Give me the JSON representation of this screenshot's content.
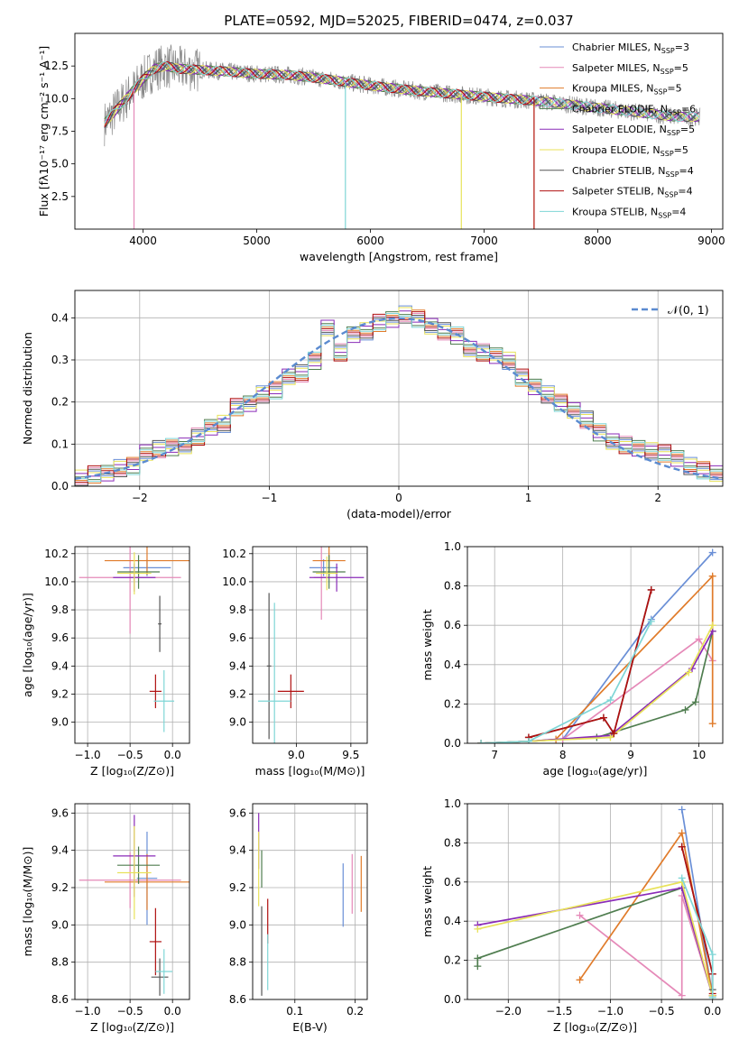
{
  "title": "PLATE=0592, MJD=52025, FIBERID=0474, z=0.037",
  "colors": {
    "Chabrier MILES": "#6a8fd6",
    "Salpeter MILES": "#e589b8",
    "Kroupa MILES": "#e07b2a",
    "Chabrier ELODIE": "#4f7d4f",
    "Salpeter ELODIE": "#8a2bb8",
    "Kroupa ELODIE": "#e8e25a",
    "Chabrier STELIB": "#555555",
    "Salpeter STELIB": "#b01010",
    "Kroupa STELIB": "#7fd6d6",
    "data": "#888888",
    "normal": "#5b8bd0"
  },
  "chart_data": [
    {
      "id": "spectrum",
      "type": "line",
      "xlabel": "wavelength [Angstrom, rest frame]",
      "ylabel": "Flux [fλ10⁻¹⁷ erg cm⁻² s⁻¹ A⁻¹]",
      "xlim": [
        3400,
        9100
      ],
      "ylim": [
        0,
        15
      ],
      "xticks": [
        4000,
        5000,
        6000,
        7000,
        8000,
        9000
      ],
      "yticks": [
        2.5,
        5.0,
        7.5,
        10.0,
        12.5
      ],
      "legend_position": "top-right",
      "series": [
        {
          "name": "Chabrier MILES, N",
          "sub": "SSP",
          "tail": "=3"
        },
        {
          "name": "Salpeter MILES, N",
          "sub": "SSP",
          "tail": "=5"
        },
        {
          "name": "Kroupa MILES, N",
          "sub": "SSP",
          "tail": "=5"
        },
        {
          "name": "Chabrier ELODIE, N",
          "sub": "SSP",
          "tail": "=6"
        },
        {
          "name": "Salpeter ELODIE, N",
          "sub": "SSP",
          "tail": "=5"
        },
        {
          "name": "Kroupa ELODIE, N",
          "sub": "SSP",
          "tail": "=5"
        },
        {
          "name": "Chabrier STELIB, N",
          "sub": "SSP",
          "tail": "=4"
        },
        {
          "name": "Salpeter STELIB, N",
          "sub": "SSP",
          "tail": "=4"
        },
        {
          "name": "Kroupa STELIB, N",
          "sub": "SSP",
          "tail": "=4"
        }
      ],
      "continuum": {
        "x": [
          3650,
          3800,
          3900,
          4000,
          4100,
          4200,
          4300,
          4500,
          4700,
          5000,
          5300,
          5600,
          6000,
          6400,
          6800,
          7200,
          7500,
          7800,
          8100,
          8400,
          8700,
          8900
        ],
        "y": [
          8.0,
          9.5,
          10.5,
          11.5,
          12.3,
          12.5,
          12.3,
          12.2,
          12.1,
          11.9,
          11.8,
          11.5,
          11.0,
          10.6,
          10.3,
          10.0,
          9.8,
          9.5,
          9.2,
          8.9,
          8.6,
          8.6
        ]
      }
    },
    {
      "id": "residuals",
      "type": "histogram",
      "xlabel": "(data-model)/error",
      "ylabel": "Normed distribution",
      "xlim": [
        -2.5,
        2.5
      ],
      "ylim": [
        0,
        0.465
      ],
      "xticks": [
        -2,
        -1,
        0,
        1,
        2
      ],
      "yticks": [
        0.0,
        0.1,
        0.2,
        0.3,
        0.4
      ],
      "legend": "𝒩(0, 1)",
      "legend_position": "top-right",
      "bin_edges": [
        -2.5,
        -2.4,
        -2.3,
        -2.2,
        -2.1,
        -2.0,
        -1.9,
        -1.8,
        -1.7,
        -1.6,
        -1.5,
        -1.4,
        -1.3,
        -1.2,
        -1.1,
        -1.0,
        -0.9,
        -0.8,
        -0.7,
        -0.6,
        -0.5,
        -0.4,
        -0.3,
        -0.2,
        -0.1,
        0.0,
        0.1,
        0.2,
        0.3,
        0.4,
        0.5,
        0.6,
        0.7,
        0.8,
        0.9,
        1.0,
        1.1,
        1.2,
        1.3,
        1.4,
        1.5,
        1.6,
        1.7,
        1.8,
        1.9,
        2.0,
        2.1,
        2.2,
        2.3,
        2.4,
        2.5
      ],
      "values": [
        0.02,
        0.03,
        0.035,
        0.045,
        0.05,
        0.08,
        0.09,
        0.095,
        0.1,
        0.12,
        0.14,
        0.15,
        0.19,
        0.2,
        0.22,
        0.23,
        0.26,
        0.27,
        0.3,
        0.38,
        0.32,
        0.36,
        0.37,
        0.39,
        0.4,
        0.41,
        0.4,
        0.38,
        0.37,
        0.36,
        0.33,
        0.32,
        0.31,
        0.3,
        0.26,
        0.24,
        0.22,
        0.2,
        0.18,
        0.16,
        0.13,
        0.11,
        0.1,
        0.09,
        0.085,
        0.08,
        0.07,
        0.05,
        0.04,
        0.03
      ]
    },
    {
      "id": "age-vs-Z",
      "type": "scatter",
      "xlabel": "Z [log₁₀(Z/Z⊙)]",
      "ylabel": "age  [log₁₀(age/yr)]",
      "xlim": [
        -1.15,
        0.2
      ],
      "ylim": [
        8.85,
        10.25
      ],
      "xticks": [
        -1.0,
        -0.5,
        0.0
      ],
      "yticks": [
        9.0,
        9.2,
        9.4,
        9.6,
        9.8,
        10.0,
        10.2
      ],
      "points": [
        {
          "s": 0,
          "x": -0.3,
          "y": 10.1,
          "xe": 0.28,
          "ye": 0.06
        },
        {
          "s": 1,
          "x": -0.5,
          "y": 10.03,
          "xe": 0.6,
          "ye": 0.4
        },
        {
          "s": 2,
          "x": -0.3,
          "y": 10.15,
          "xe": 0.5,
          "ye": 0.1
        },
        {
          "s": 3,
          "x": -0.4,
          "y": 10.07,
          "xe": 0.25,
          "ye": 0.12
        },
        {
          "s": 4,
          "x": -0.45,
          "y": 10.03,
          "xe": 0.25,
          "ye": 0.1
        },
        {
          "s": 5,
          "x": -0.45,
          "y": 10.06,
          "xe": 0.2,
          "ye": 0.15
        },
        {
          "s": 6,
          "x": -0.15,
          "y": 9.7,
          "xe": 0.02,
          "ye": 0.2
        },
        {
          "s": 7,
          "x": -0.2,
          "y": 9.22,
          "xe": 0.07,
          "ye": 0.12
        },
        {
          "s": 8,
          "x": -0.1,
          "y": 9.15,
          "xe": 0.12,
          "ye": 0.22
        }
      ]
    },
    {
      "id": "age-vs-mass",
      "type": "scatter",
      "xlabel": "mass [log₁₀(M/M⊙)]",
      "ylabel": "",
      "xlim": [
        8.6,
        9.65
      ],
      "ylim": [
        8.85,
        10.25
      ],
      "xticks": [
        9.0,
        9.5
      ],
      "yticks": [
        9.0,
        9.2,
        9.4,
        9.6,
        9.8,
        10.0,
        10.2
      ],
      "points": [
        {
          "s": 0,
          "x": 9.25,
          "y": 10.1,
          "xe": 0.13,
          "ye": 0.06
        },
        {
          "s": 1,
          "x": 9.23,
          "y": 10.03,
          "xe": 0.07,
          "ye": 0.3
        },
        {
          "s": 2,
          "x": 9.3,
          "y": 10.15,
          "xe": 0.15,
          "ye": 0.1
        },
        {
          "s": 3,
          "x": 9.3,
          "y": 10.07,
          "xe": 0.15,
          "ye": 0.12
        },
        {
          "s": 4,
          "x": 9.37,
          "y": 10.03,
          "xe": 0.25,
          "ye": 0.1
        },
        {
          "s": 5,
          "x": 9.28,
          "y": 10.06,
          "xe": 0.1,
          "ye": 0.12
        },
        {
          "s": 6,
          "x": 8.75,
          "y": 9.4,
          "xe": 0.02,
          "ye": 0.52
        },
        {
          "s": 7,
          "x": 8.95,
          "y": 9.22,
          "xe": 0.12,
          "ye": 0.12
        },
        {
          "s": 8,
          "x": 8.8,
          "y": 9.15,
          "xe": 0.15,
          "ye": 0.7
        }
      ]
    },
    {
      "id": "weight-vs-age",
      "type": "line",
      "xlabel": "age  [log₁₀(age/yr)]",
      "ylabel": "mass weight",
      "xlim": [
        6.6,
        10.35
      ],
      "ylim": [
        0,
        1.0
      ],
      "xticks": [
        7,
        8,
        9,
        10
      ],
      "yticks": [
        0.0,
        0.2,
        0.4,
        0.6,
        0.8,
        1.0
      ],
      "series": [
        {
          "s": 0,
          "x": [
            6.8,
            7.5,
            8.0,
            9.3,
            10.2
          ],
          "y": [
            0.0,
            0.01,
            0.02,
            0.63,
            0.97
          ]
        },
        {
          "s": 1,
          "x": [
            6.8,
            7.5,
            8.0,
            10.0,
            10.2
          ],
          "y": [
            0.0,
            0.01,
            0.02,
            0.53,
            0.42
          ]
        },
        {
          "s": 2,
          "x": [
            6.8,
            7.5,
            7.9,
            10.2,
            10.2
          ],
          "y": [
            0.0,
            0.01,
            0.02,
            0.85,
            0.1
          ]
        },
        {
          "s": 3,
          "x": [
            6.8,
            7.5,
            8.5,
            9.8,
            9.95,
            10.2
          ],
          "y": [
            0.0,
            0.01,
            0.03,
            0.17,
            0.21,
            0.57
          ]
        },
        {
          "s": 4,
          "x": [
            6.8,
            7.5,
            8.7,
            9.9,
            10.2
          ],
          "y": [
            0.0,
            0.01,
            0.04,
            0.38,
            0.57
          ]
        },
        {
          "s": 5,
          "x": [
            6.8,
            7.5,
            8.7,
            9.85,
            10.2
          ],
          "y": [
            0.0,
            0.01,
            0.03,
            0.36,
            0.6
          ]
        },
        {
          "s": 6,
          "x": [
            7.5,
            8.6,
            8.75,
            9.3
          ],
          "y": [
            0.03,
            0.13,
            0.05,
            0.78
          ]
        },
        {
          "s": 7,
          "x": [
            7.5,
            8.6,
            8.75,
            9.3
          ],
          "y": [
            0.03,
            0.13,
            0.05,
            0.78
          ]
        },
        {
          "s": 8,
          "x": [
            6.8,
            7.5,
            8.7,
            9.3
          ],
          "y": [
            0.0,
            0.01,
            0.22,
            0.62
          ]
        }
      ]
    },
    {
      "id": "mass-vs-Z",
      "type": "scatter",
      "xlabel": "Z [log₁₀(Z/Z⊙)]",
      "ylabel": "mass [log₁₀(M/M⊙)]",
      "xlim": [
        -1.15,
        0.2
      ],
      "ylim": [
        8.6,
        9.65
      ],
      "xticks": [
        -1.0,
        -0.5,
        0.0
      ],
      "yticks": [
        8.6,
        8.8,
        9.0,
        9.2,
        9.4,
        9.6
      ],
      "points": [
        {
          "s": 0,
          "x": -0.3,
          "y": 9.25,
          "xe": 0.12,
          "ye": 0.25
        },
        {
          "s": 1,
          "x": -0.5,
          "y": 9.24,
          "xe": 0.6,
          "ye": 0.15
        },
        {
          "s": 2,
          "x": -0.3,
          "y": 9.23,
          "xe": 0.5,
          "ye": 0.15
        },
        {
          "s": 3,
          "x": -0.4,
          "y": 9.32,
          "xe": 0.25,
          "ye": 0.1
        },
        {
          "s": 4,
          "x": -0.45,
          "y": 9.37,
          "xe": 0.25,
          "ye": 0.22
        },
        {
          "s": 5,
          "x": -0.45,
          "y": 9.28,
          "xe": 0.2,
          "ye": 0.25
        },
        {
          "s": 6,
          "x": -0.15,
          "y": 8.72,
          "xe": 0.1,
          "ye": 0.1
        },
        {
          "s": 7,
          "x": -0.2,
          "y": 8.91,
          "xe": 0.07,
          "ye": 0.18
        },
        {
          "s": 8,
          "x": -0.1,
          "y": 8.75,
          "xe": 0.1,
          "ye": 0.12
        }
      ]
    },
    {
      "id": "mass-vs-EBV",
      "type": "scatter",
      "xlabel": "E(B-V)",
      "ylabel": "",
      "xlim": [
        0.03,
        0.22
      ],
      "ylim": [
        8.6,
        9.65
      ],
      "xticks": [
        0.1,
        0.2
      ],
      "yticks": [
        8.6,
        8.8,
        9.0,
        9.2,
        9.4,
        9.6
      ],
      "points": [
        {
          "s": 0,
          "x": 0.18,
          "y": 9.16,
          "xe": 0,
          "ye": 0.17
        },
        {
          "s": 1,
          "x": 0.195,
          "y": 9.22,
          "xe": 0,
          "ye": 0.16
        },
        {
          "s": 2,
          "x": 0.21,
          "y": 9.22,
          "xe": 0,
          "ye": 0.15
        },
        {
          "s": 3,
          "x": 0.045,
          "y": 9.3,
          "xe": 0,
          "ye": 0.1
        },
        {
          "s": 4,
          "x": 0.04,
          "y": 9.45,
          "xe": 0,
          "ye": 0.15
        },
        {
          "s": 5,
          "x": 0.04,
          "y": 9.3,
          "xe": 0,
          "ye": 0.2
        },
        {
          "s": 6,
          "x": 0.045,
          "y": 8.86,
          "xe": 0,
          "ye": 0.24
        },
        {
          "s": 7,
          "x": 0.055,
          "y": 9.02,
          "xe": 0,
          "ye": 0.12
        },
        {
          "s": 8,
          "x": 0.055,
          "y": 8.8,
          "xe": 0,
          "ye": 0.15
        }
      ]
    },
    {
      "id": "weight-vs-Z",
      "type": "line",
      "xlabel": "Z [log₁₀(Z/Z⊙)]",
      "ylabel": "mass weight",
      "xlim": [
        -2.4,
        0.1
      ],
      "ylim": [
        0,
        1.0
      ],
      "xticks": [
        -2.0,
        -1.5,
        -1.0,
        -0.5,
        0.0
      ],
      "yticks": [
        0.0,
        0.2,
        0.4,
        0.6,
        0.8,
        1.0
      ],
      "series": [
        {
          "s": 0,
          "x": [
            -0.3,
            0.0
          ],
          "y": [
            0.97,
            0.02
          ]
        },
        {
          "s": 1,
          "x": [
            -1.3,
            -0.3,
            -0.3,
            0.0
          ],
          "y": [
            0.43,
            0.02,
            0.53,
            0.02
          ]
        },
        {
          "s": 2,
          "x": [
            -1.3,
            -0.3,
            0.0
          ],
          "y": [
            0.1,
            0.85,
            0.02
          ]
        },
        {
          "s": 3,
          "x": [
            -2.3,
            -2.3,
            -0.3,
            0.0
          ],
          "y": [
            0.17,
            0.21,
            0.57,
            0.02
          ]
        },
        {
          "s": 4,
          "x": [
            -2.3,
            -0.3,
            0.0
          ],
          "y": [
            0.38,
            0.57,
            0.02
          ]
        },
        {
          "s": 5,
          "x": [
            -2.3,
            -0.3,
            0.0
          ],
          "y": [
            0.36,
            0.6,
            0.02
          ]
        },
        {
          "s": 6,
          "x": [
            -0.3,
            0.0,
            0.0
          ],
          "y": [
            0.78,
            0.13,
            0.05
          ]
        },
        {
          "s": 7,
          "x": [
            -0.3,
            0.0,
            0.0
          ],
          "y": [
            0.78,
            0.13,
            0.03
          ]
        },
        {
          "s": 8,
          "x": [
            -0.3,
            0.0,
            0.0
          ],
          "y": [
            0.62,
            0.23,
            0.01
          ]
        }
      ]
    }
  ]
}
